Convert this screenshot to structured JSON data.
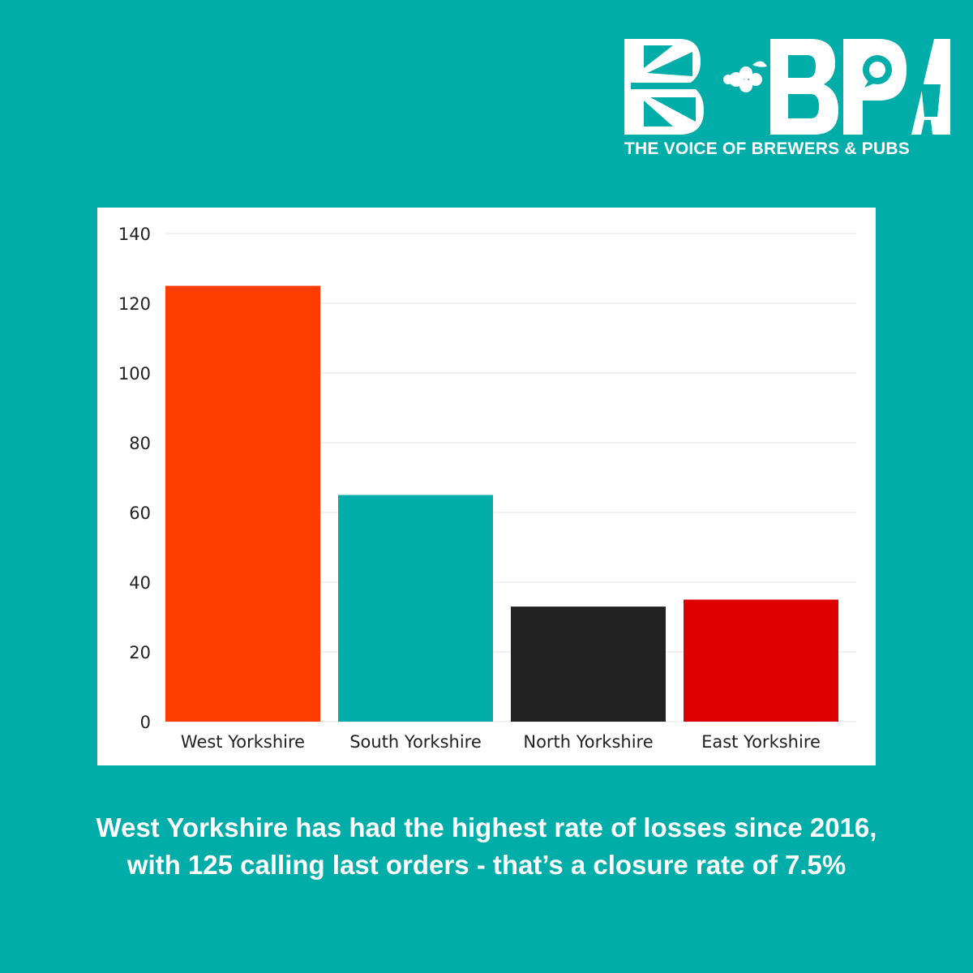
{
  "brand": {
    "logo_text": "BPA",
    "tagline": "THE VOICE OF BREWERS & PUBS",
    "text_color": "#ffffff",
    "background_color": "#00ADA9"
  },
  "caption": {
    "line1": "West Yorkshire has had the highest rate of losses since 2016,",
    "line2": "with 125 calling last orders - that’s a closure rate of 7.5%"
  },
  "chart_data": {
    "type": "bar",
    "categories": [
      "West Yorkshire",
      "South Yorkshire",
      "North Yorkshire",
      "East Yorkshire"
    ],
    "values": [
      125,
      65,
      33,
      35
    ],
    "colors": [
      "#FF3D00",
      "#00ADA9",
      "#222222",
      "#DD0000"
    ],
    "ylim": [
      0,
      140
    ],
    "yticks": [
      0,
      20,
      40,
      60,
      80,
      100,
      120,
      140
    ],
    "grid": true,
    "legend": "none"
  }
}
